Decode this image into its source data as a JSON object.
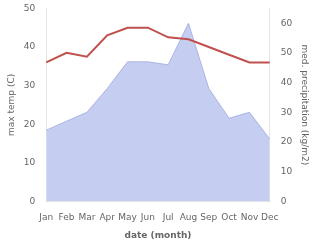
{
  "chart_data": {
    "type": "line",
    "xlabel": "date (month)",
    "ylabel": "max temp (C)",
    "y2label": "med. precipitation (kg/m2)",
    "categories": [
      "Jan",
      "Feb",
      "Mar",
      "Apr",
      "May",
      "Jun",
      "Jul",
      "Aug",
      "Sep",
      "Oct",
      "Nov",
      "Dec"
    ],
    "series": [
      {
        "type": "area",
        "axis": "y2",
        "color": "#c5cdf0",
        "values": [
          24,
          27,
          30,
          38,
          47,
          47,
          46,
          60,
          38,
          28,
          30,
          21
        ]
      },
      {
        "type": "line",
        "axis": "y",
        "color": "#c0504d",
        "values": [
          36,
          38.5,
          37.5,
          43,
          45,
          45,
          42.5,
          42,
          40,
          38,
          36,
          36
        ]
      }
    ],
    "ylim": [
      0,
      50
    ],
    "yticks": [
      0,
      10,
      20,
      30,
      40,
      50
    ],
    "y2lim": [
      0,
      65
    ],
    "y2ticks": [
      0,
      10,
      20,
      30,
      40,
      50,
      60
    ],
    "grid": false
  }
}
